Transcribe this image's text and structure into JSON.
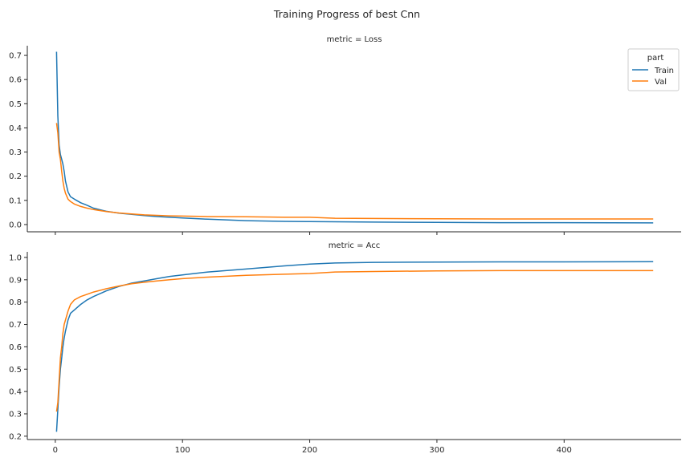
{
  "figure": {
    "title": "Training Progress of best Cnn"
  },
  "chart_data": {
    "type": "line",
    "facet_var": "metric",
    "legend": {
      "title": "part",
      "placement": "top-right",
      "entries": [
        "Train",
        "Val"
      ]
    },
    "colors": {
      "Train": "#1f77b4",
      "Val": "#ff7f0e"
    },
    "x_range": [
      -22,
      492
    ],
    "x_ticks": [
      0,
      100,
      200,
      300,
      400
    ],
    "grid": false,
    "panels": [
      {
        "title": "metric = Loss",
        "ylim": [
          -0.03,
          0.74
        ],
        "y_ticks": [
          0.0,
          0.1,
          0.2,
          0.3,
          0.4,
          0.5,
          0.6,
          0.7
        ],
        "y_tick_labels": [
          "0.0",
          "0.1",
          "0.2",
          "0.3",
          "0.4",
          "0.5",
          "0.6",
          "0.7"
        ],
        "series": [
          {
            "name": "Train",
            "x": [
              1,
              2,
              3,
              4,
              5,
              6,
              7,
              8,
              10,
              12,
              15,
              20,
              25,
              30,
              40,
              50,
              60,
              70,
              80,
              90,
              100,
              120,
              150,
              180,
              200,
              250,
              300,
              350,
              400,
              470
            ],
            "values": [
              0.715,
              0.45,
              0.33,
              0.29,
              0.27,
              0.25,
              0.22,
              0.18,
              0.135,
              0.115,
              0.105,
              0.09,
              0.08,
              0.068,
              0.055,
              0.047,
              0.042,
              0.037,
              0.033,
              0.03,
              0.027,
              0.022,
              0.016,
              0.013,
              0.012,
              0.01,
              0.009,
              0.008,
              0.008,
              0.007
            ]
          },
          {
            "name": "Val",
            "x": [
              1,
              2,
              3,
              4,
              5,
              6,
              7,
              8,
              10,
              12,
              15,
              20,
              25,
              30,
              40,
              50,
              60,
              70,
              80,
              90,
              100,
              120,
              150,
              170,
              180,
              200,
              220,
              250,
              300,
              350,
              400,
              470
            ],
            "values": [
              0.42,
              0.38,
              0.3,
              0.27,
              0.22,
              0.18,
              0.15,
              0.13,
              0.105,
              0.095,
              0.085,
              0.075,
              0.068,
              0.062,
              0.054,
              0.048,
              0.044,
              0.04,
              0.038,
              0.036,
              0.035,
              0.033,
              0.032,
              0.031,
              0.03,
              0.03,
              0.026,
              0.025,
              0.024,
              0.023,
              0.023,
              0.023
            ]
          }
        ]
      },
      {
        "title": "metric = Acc",
        "ylim": [
          0.185,
          1.025
        ],
        "y_ticks": [
          0.2,
          0.3,
          0.4,
          0.5,
          0.6,
          0.7,
          0.8,
          0.9,
          1.0
        ],
        "y_tick_labels": [
          "0.2",
          "0.3",
          "0.4",
          "0.5",
          "0.6",
          "0.7",
          "0.8",
          "0.9",
          "1.0"
        ],
        "series": [
          {
            "name": "Train",
            "x": [
              1,
              2,
              3,
              4,
              5,
              6,
              7,
              8,
              10,
              12,
              15,
              20,
              25,
              30,
              40,
              50,
              60,
              70,
              80,
              90,
              100,
              120,
              150,
              180,
              200,
              220,
              250,
              300,
              350,
              400,
              470
            ],
            "values": [
              0.22,
              0.32,
              0.42,
              0.5,
              0.55,
              0.6,
              0.64,
              0.67,
              0.72,
              0.75,
              0.765,
              0.79,
              0.81,
              0.825,
              0.85,
              0.87,
              0.885,
              0.895,
              0.905,
              0.915,
              0.922,
              0.935,
              0.948,
              0.962,
              0.97,
              0.975,
              0.978,
              0.979,
              0.98,
              0.98,
              0.981
            ]
          },
          {
            "name": "Val",
            "x": [
              1,
              2,
              3,
              4,
              5,
              6,
              7,
              8,
              10,
              12,
              15,
              20,
              25,
              30,
              40,
              50,
              60,
              70,
              80,
              90,
              100,
              120,
              150,
              180,
              200,
              220,
              250,
              300,
              350,
              400,
              470
            ],
            "values": [
              0.31,
              0.35,
              0.45,
              0.55,
              0.6,
              0.66,
              0.7,
              0.72,
              0.76,
              0.79,
              0.81,
              0.825,
              0.835,
              0.845,
              0.86,
              0.872,
              0.882,
              0.889,
              0.895,
              0.9,
              0.905,
              0.912,
              0.92,
              0.925,
              0.928,
              0.935,
              0.937,
              0.94,
              0.941,
              0.941,
              0.941
            ]
          }
        ]
      }
    ]
  }
}
